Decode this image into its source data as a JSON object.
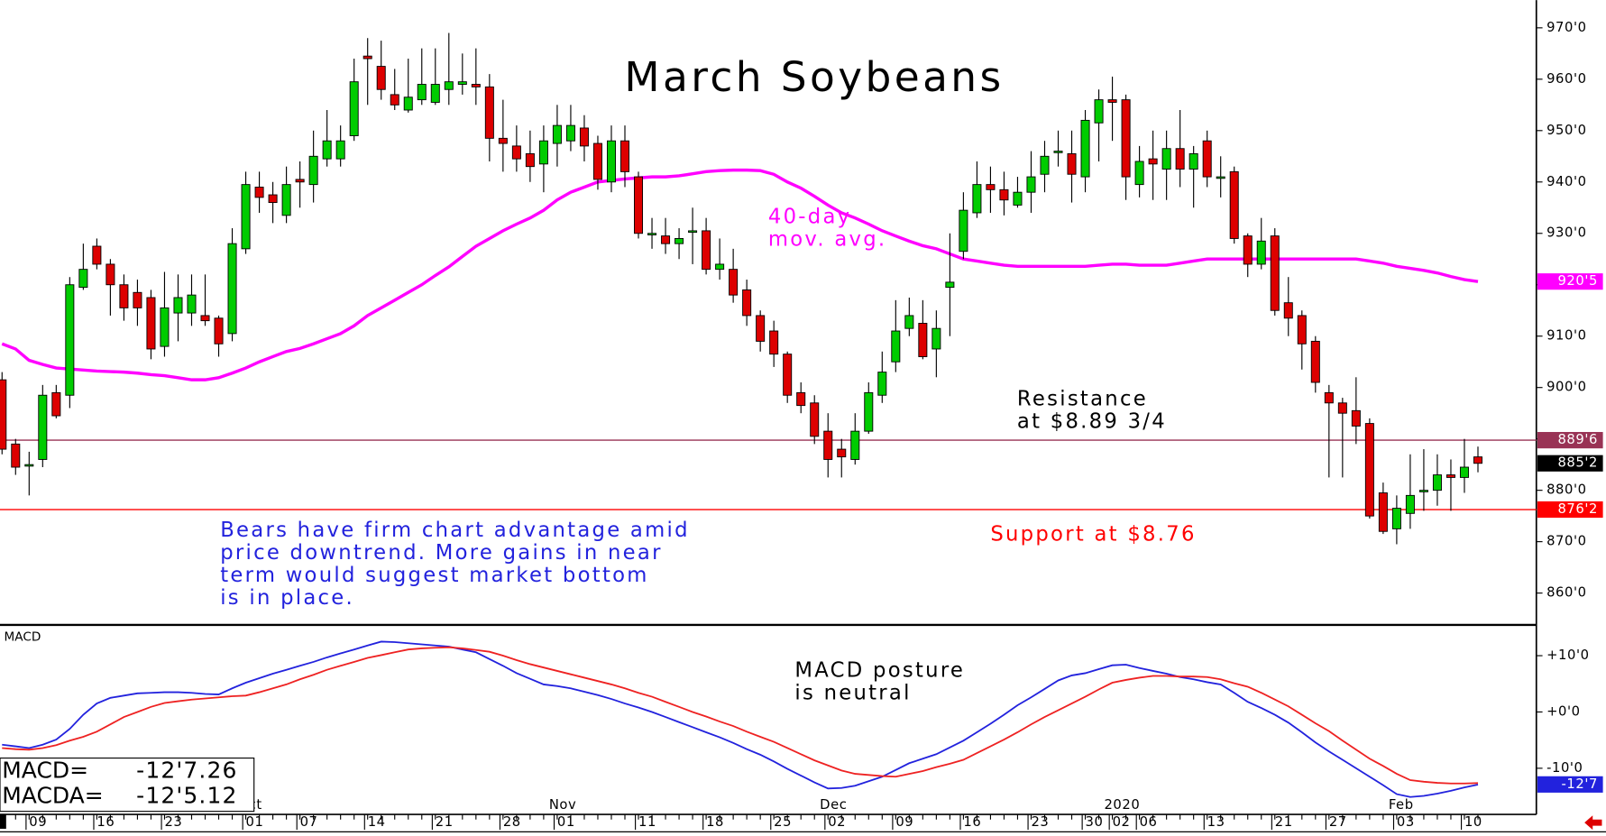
{
  "chart_data": [
    {
      "type": "candlestick",
      "title": "March Soybeans",
      "categories": [
        null,
        null,
        "09",
        null,
        null,
        null,
        null,
        "16",
        null,
        null,
        null,
        null,
        "23",
        null,
        null,
        null,
        null,
        null,
        "01",
        null,
        null,
        null,
        "07",
        null,
        null,
        null,
        null,
        "14",
        null,
        null,
        null,
        null,
        "21",
        null,
        null,
        null,
        null,
        "28",
        null,
        null,
        null,
        "01",
        null,
        null,
        null,
        null,
        null,
        "11",
        null,
        null,
        null,
        null,
        "18",
        null,
        null,
        null,
        null,
        "25",
        null,
        null,
        null,
        "02",
        null,
        null,
        null,
        null,
        "09",
        null,
        null,
        null,
        null,
        "16",
        null,
        null,
        null,
        null,
        "23",
        null,
        null,
        null,
        "30",
        null,
        "02",
        null,
        "06",
        null,
        null,
        null,
        null,
        "13",
        null,
        null,
        null,
        null,
        "21",
        null,
        null,
        null,
        "27",
        null,
        null,
        null,
        null,
        "03",
        null,
        null,
        null,
        null,
        "10",
        null
      ],
      "months": [
        null,
        null,
        null,
        null,
        null,
        null,
        null,
        null,
        null,
        null,
        null,
        null,
        null,
        null,
        null,
        null,
        null,
        null,
        "Oct",
        null,
        null,
        null,
        null,
        null,
        null,
        null,
        null,
        null,
        null,
        null,
        null,
        null,
        null,
        null,
        null,
        null,
        null,
        null,
        null,
        null,
        null,
        "Nov",
        null,
        null,
        null,
        null,
        null,
        null,
        null,
        null,
        null,
        null,
        null,
        null,
        null,
        null,
        null,
        null,
        null,
        null,
        null,
        "Dec",
        null,
        null,
        null,
        null,
        null,
        null,
        null,
        null,
        null,
        null,
        null,
        null,
        null,
        null,
        null,
        null,
        null,
        null,
        null,
        null,
        "2020",
        null,
        null,
        null,
        null,
        null,
        null,
        null,
        null,
        null,
        null,
        null,
        null,
        null,
        null,
        null,
        null,
        null,
        null,
        null,
        null,
        "Feb",
        null,
        null,
        null,
        null,
        null,
        null
      ],
      "open": [
        901.5,
        889,
        885,
        886,
        899,
        898.5,
        919.5,
        927.5,
        924,
        920,
        918.5,
        917.5,
        908,
        914.5,
        914.5,
        914,
        913.5,
        910.5,
        927,
        939,
        937.5,
        933.5,
        940.5,
        939.5,
        944.5,
        944.5,
        949,
        964.5,
        962.5,
        957,
        954,
        956,
        955.5,
        958,
        959,
        959,
        958.5,
        948.5,
        947,
        945.5,
        943.5,
        947.5,
        948,
        950.5,
        947.5,
        940,
        948,
        941,
        930,
        929.5,
        928,
        930.5,
        930.5,
        923,
        923,
        919,
        914,
        911,
        906.5,
        899,
        897,
        891.5,
        888,
        886,
        891.5,
        898.5,
        905,
        911.5,
        912.5,
        907.5,
        919.5,
        926.5,
        934,
        939.5,
        938.5,
        935.5,
        938,
        941.5,
        946,
        945.5,
        941,
        951.5,
        956,
        956,
        939.5,
        944.5,
        942.5,
        946.5,
        942.5,
        948,
        941,
        942,
        929.5,
        924,
        929.5,
        916.5,
        914,
        909,
        899,
        897,
        895.5,
        893,
        879.5,
        872.5,
        875.5,
        880,
        880,
        883,
        882.5,
        886.5
      ],
      "high": [
        903,
        890,
        887.5,
        900.5,
        900.5,
        921.5,
        928,
        929,
        925,
        922,
        921,
        919,
        922.5,
        922,
        922,
        922,
        914,
        931,
        942,
        942,
        940,
        943,
        944,
        950,
        954,
        951,
        964,
        968,
        967.5,
        962,
        964,
        966,
        966,
        969,
        965,
        966,
        961,
        956,
        951,
        950,
        951,
        955,
        955,
        953,
        949,
        951,
        951,
        942,
        933,
        933,
        931,
        935,
        933,
        929,
        927,
        921,
        915,
        913,
        907,
        901,
        898.5,
        895,
        890,
        895,
        901,
        907,
        917,
        917.5,
        917,
        915,
        930,
        938,
        944,
        943,
        942,
        941,
        946,
        948,
        950,
        950,
        954,
        958,
        960.5,
        957,
        947,
        950,
        950,
        954,
        947,
        950,
        945,
        943,
        930,
        933,
        931,
        921.5,
        915,
        910,
        900.5,
        898,
        902,
        894,
        881.5,
        879,
        887,
        888,
        887,
        886,
        890,
        888.5
      ],
      "low": [
        887,
        883,
        879,
        884.5,
        894,
        896,
        919,
        923,
        914,
        913,
        912,
        905.5,
        906,
        909,
        912,
        912,
        906,
        909,
        926,
        934,
        932,
        932,
        935,
        936,
        943,
        943,
        948,
        955,
        956,
        954,
        953.5,
        955,
        955,
        955,
        957,
        955,
        944,
        942,
        942,
        940,
        938,
        943,
        946,
        944,
        938.5,
        938,
        939,
        929,
        927,
        926,
        925,
        924,
        922,
        921,
        916.5,
        912,
        907,
        904,
        897,
        895,
        889,
        882.5,
        882.5,
        885,
        891,
        897,
        903,
        910,
        905.5,
        902,
        910,
        925,
        933,
        934,
        933.5,
        935,
        934,
        938,
        943,
        936,
        938,
        944,
        948,
        936.5,
        937,
        936.5,
        936.5,
        939,
        935,
        939,
        937,
        928,
        921.5,
        923,
        914,
        910,
        903.5,
        899,
        882.5,
        882.5,
        889,
        874.5,
        871.5,
        869.5,
        872.5,
        876,
        877,
        876,
        879.5,
        883.5
      ],
      "close": [
        888,
        884.5,
        885,
        898.5,
        894.5,
        920,
        923,
        924,
        920,
        915.5,
        915.5,
        907.5,
        915.5,
        917.5,
        918,
        913,
        908.5,
        928,
        939.5,
        937,
        936,
        939.5,
        940,
        945,
        948,
        948,
        959.5,
        964,
        958,
        955,
        956.5,
        959,
        959,
        959.5,
        959.5,
        958.5,
        948.5,
        947.5,
        944.5,
        943,
        948,
        951,
        951,
        947,
        940.5,
        948,
        942,
        930,
        930,
        928,
        929,
        930.5,
        923,
        924,
        918,
        914,
        909,
        906.5,
        898.5,
        896.5,
        890.5,
        886,
        886.5,
        891.5,
        899,
        903,
        911,
        914,
        906,
        911.5,
        920.5,
        934.5,
        939.5,
        938.5,
        936.5,
        938,
        941,
        945,
        946,
        941.5,
        952,
        956,
        955.5,
        941,
        944,
        943.5,
        946.5,
        942.5,
        945.5,
        941,
        941,
        929,
        924,
        928.5,
        915,
        913.5,
        908.5,
        901,
        897,
        895,
        892.5,
        875,
        872,
        876.5,
        879,
        880,
        883,
        882.5,
        884.5,
        885.25
      ],
      "up_color": "#00cc00",
      "down_color": "#dd0000",
      "ma": {
        "color": "#ff00ff",
        "label": [
          "40-day",
          "mov. avg."
        ],
        "values": [
          908.5,
          907.5,
          905.3,
          904.5,
          903.8,
          903.6,
          903.4,
          903.2,
          903.1,
          903,
          902.8,
          902.5,
          902.3,
          901.9,
          901.5,
          901.5,
          901.9,
          902.8,
          903.8,
          905,
          906,
          907,
          907.6,
          908.5,
          909.5,
          910.5,
          912,
          914,
          915.5,
          917,
          918.5,
          920,
          921.8,
          923.5,
          925.5,
          927.5,
          929,
          930.5,
          931.8,
          933,
          934.5,
          936.5,
          938,
          939,
          940,
          940.3,
          940.6,
          940.8,
          941,
          941,
          941.2,
          941.6,
          942,
          942.2,
          942.3,
          942.3,
          942.2,
          941.5,
          940,
          938.8,
          937.2,
          935.5,
          934,
          933,
          931.8,
          930.5,
          929.5,
          928.5,
          927.6,
          927,
          926,
          925,
          924.6,
          924.2,
          923.8,
          923.6,
          923.6,
          923.6,
          923.6,
          923.6,
          923.6,
          923.8,
          924,
          924,
          923.8,
          923.8,
          923.8,
          924.2,
          924.6,
          925,
          925,
          925,
          925,
          925,
          925,
          925,
          925,
          925,
          925,
          925,
          925,
          924.6,
          924.2,
          923.6,
          923.2,
          922.8,
          922.3,
          921.6,
          921,
          920.625
        ]
      },
      "ylim": [
        853.8,
        975.4
      ],
      "yticks": [
        {
          "value": 860,
          "label": "860'0"
        },
        {
          "value": 870,
          "label": "870'0"
        },
        {
          "value": 880,
          "label": "880'0"
        },
        {
          "value": 890,
          "label": "890'0"
        },
        {
          "value": 900,
          "label": "900'0"
        },
        {
          "value": 910,
          "label": "910'0"
        },
        {
          "value": 920,
          "label": "920'0"
        },
        {
          "value": 930,
          "label": "930'0"
        },
        {
          "value": 940,
          "label": "940'0"
        },
        {
          "value": 950,
          "label": "950'0"
        },
        {
          "value": 960,
          "label": "960'0"
        },
        {
          "value": 970,
          "label": "970'0"
        }
      ],
      "price_tags": [
        {
          "value": 920.625,
          "label": "920'5",
          "color": "#ff00ff",
          "line": false
        },
        {
          "value": 889.75,
          "label": "889'6",
          "color": "#993355",
          "line": true
        },
        {
          "value": 885.25,
          "label": "885'2",
          "color": "#000000",
          "line": false
        },
        {
          "value": 876.25,
          "label": "876'2",
          "color": "#ff0000",
          "line": true
        }
      ],
      "annotations": {
        "resistance": [
          "Resistance",
          "at $8.89 3/4"
        ],
        "support": "Support at $8.76",
        "comment": [
          "Bears have firm chart advantage amid",
          "price downtrend. More gains in near",
          "term would suggest market bottom",
          "is in place."
        ]
      }
    },
    {
      "type": "line",
      "title": "MACD",
      "series": [
        {
          "color": "#2222dd",
          "values": [
            -5.8,
            -6.1,
            -6.4,
            -5.8,
            -4.9,
            -3,
            -0.5,
            1.5,
            2.5,
            2.9,
            3.3,
            3.4,
            3.5,
            3.5,
            3.4,
            3.2,
            3.1,
            4.2,
            5.2,
            6,
            6.8,
            7.5,
            8.2,
            8.9,
            9.7,
            10.4,
            11.1,
            11.8,
            12.5,
            12.4,
            12.2,
            12,
            11.8,
            11.6,
            11.1,
            10.6,
            9.4,
            8.2,
            6.9,
            5.9,
            4.9,
            4.6,
            4.2,
            3.6,
            3,
            2.3,
            1.5,
            0.8,
            0,
            -0.9,
            -1.8,
            -2.7,
            -3.6,
            -4.5,
            -5.5,
            -6.6,
            -7.6,
            -8.8,
            -10.1,
            -11.3,
            -12.5,
            -13.6,
            -13.5,
            -13.1,
            -12.3,
            -11.5,
            -10.3,
            -9.1,
            -8.3,
            -7.5,
            -6.3,
            -5.1,
            -3.6,
            -2.1,
            -0.5,
            1.2,
            2.6,
            4.1,
            5.6,
            6.5,
            6.9,
            7.6,
            8.3,
            8.4,
            7.8,
            7.3,
            6.8,
            6.2,
            5.8,
            5.3,
            4.9,
            3.4,
            1.8,
            0.7,
            -0.5,
            -1.9,
            -3.6,
            -5.4,
            -7,
            -8.5,
            -10,
            -11.5,
            -13,
            -14.6,
            -15.1,
            -14.9,
            -14.5,
            -14,
            -13.4,
            -12.91
          ]
        },
        {
          "color": "#ee2222",
          "values": [
            -6.4,
            -6.6,
            -6.7,
            -6.4,
            -5.9,
            -5.1,
            -4.4,
            -3.5,
            -2.2,
            -0.9,
            0,
            0.9,
            1.6,
            1.9,
            2.2,
            2.4,
            2.6,
            2.8,
            2.9,
            3.5,
            4.2,
            4.9,
            5.8,
            6.6,
            7.5,
            8.2,
            8.9,
            9.6,
            10.1,
            10.6,
            11.1,
            11.3,
            11.4,
            11.5,
            11.3,
            11,
            10.7,
            10,
            9.2,
            8.5,
            7.9,
            7.3,
            6.7,
            6.1,
            5.5,
            4.9,
            4.2,
            3.4,
            2.7,
            1.8,
            0.9,
            0,
            -0.8,
            -1.7,
            -2.5,
            -3.5,
            -4.4,
            -5.3,
            -6.4,
            -7.5,
            -8.6,
            -9.5,
            -10.4,
            -11,
            -11.2,
            -11.4,
            -11.5,
            -11,
            -10.5,
            -9.8,
            -9.2,
            -8.5,
            -7.3,
            -6.1,
            -4.9,
            -3.6,
            -2.2,
            -0.9,
            0.3,
            1.5,
            2.7,
            4,
            5.2,
            5.7,
            6.1,
            6.4,
            6.4,
            6.3,
            6.3,
            6.2,
            5.8,
            5.1,
            4.5,
            3.4,
            2.2,
            1,
            -0.5,
            -2,
            -3.4,
            -5.1,
            -6.7,
            -8.3,
            -9.6,
            -11,
            -12.1,
            -12.4,
            -12.6,
            -12.7,
            -12.7,
            -12.64
          ]
        }
      ],
      "ylim": [
        -18.2,
        15.1
      ],
      "yticks": [
        {
          "value": 10,
          "label": "+10'0"
        },
        {
          "value": 0,
          "label": "+0'0"
        },
        {
          "value": -10,
          "label": "-10'0"
        }
      ],
      "price_tags": [
        {
          "value": -12.875,
          "label": "-12'7",
          "color": "#2222dd"
        }
      ],
      "readouts": [
        {
          "label": "MACD=",
          "value": "-12'7.26"
        },
        {
          "label": "MACDA=",
          "value": "-12'5.12"
        }
      ],
      "annotation": [
        "MACD posture",
        "is neutral"
      ]
    }
  ]
}
